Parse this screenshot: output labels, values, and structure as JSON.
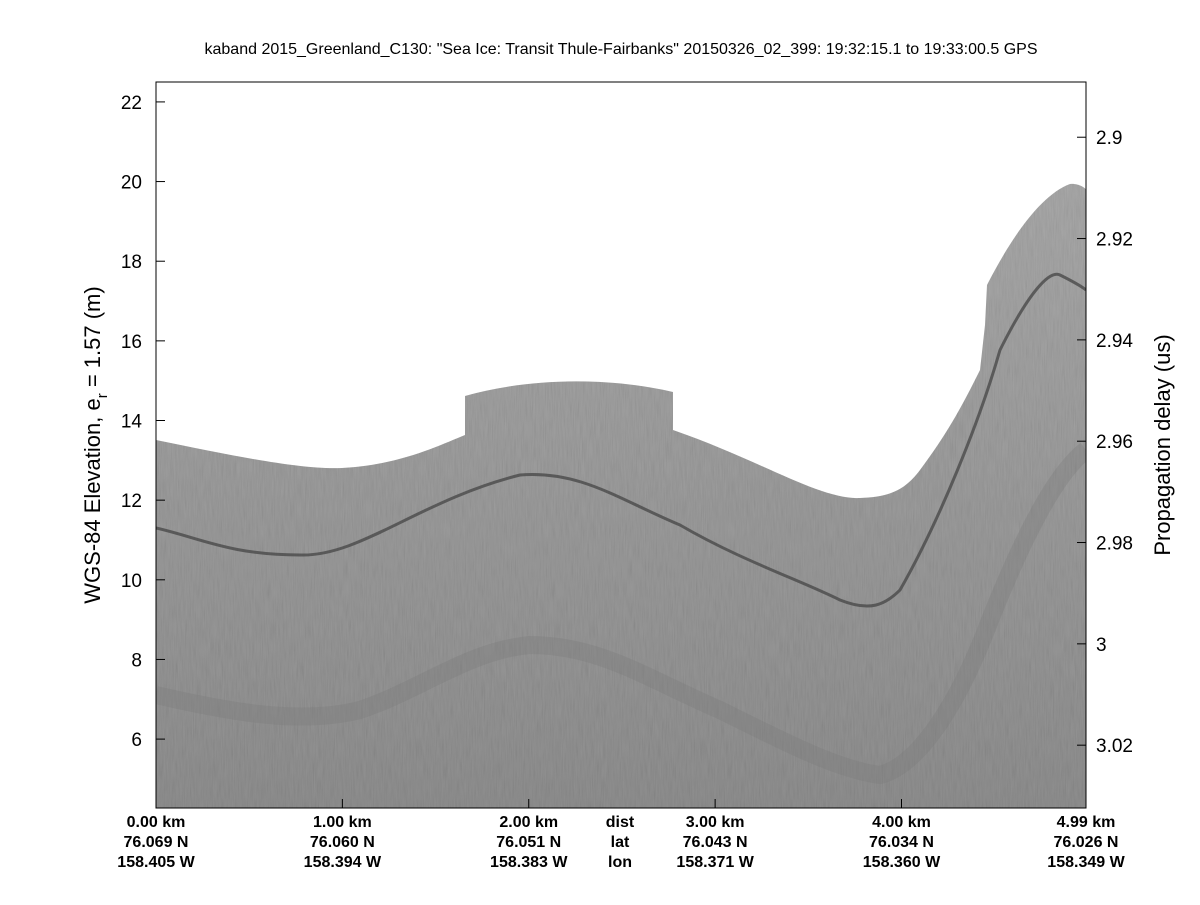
{
  "chart_data": {
    "type": "echogram",
    "title": "kaband 2015_Greenland_C130: \"Sea Ice: Transit Thule-Fairbanks\"  20150326_02_399: 19:32:15.1 to 19:33:00.5 GPS",
    "ylabel": {
      "text": "WGS-84 Elevation, e",
      "subscript": "r",
      "suffix": " = 1.57 (m)"
    },
    "y2label": "Propagation delay (us)",
    "ylim": [
      4.27,
      22.5
    ],
    "yticks": [
      6,
      8,
      10,
      12,
      14,
      16,
      18,
      20,
      22
    ],
    "y2lim": [
      2.8891,
      3.0324
    ],
    "y2_reversed": true,
    "y2ticks": [
      2.9,
      2.92,
      2.94,
      2.96,
      2.98,
      3,
      3.02
    ],
    "xlim": [
      0,
      4.99
    ],
    "xticks": [
      {
        "value": 0,
        "label": "0.00 km",
        "lat": "76.069 N",
        "lon": "158.405 W"
      },
      {
        "value": 1,
        "label": "1.00 km",
        "lat": "76.060 N",
        "lon": "158.394 W"
      },
      {
        "value": 2,
        "label": "2.00 km",
        "lat": "76.051 N",
        "lon": "158.383 W"
      },
      {
        "value": 3,
        "label": "3.00 km",
        "lat": "76.043 N",
        "lon": "158.371 W"
      },
      {
        "value": 4,
        "label": "4.00 km",
        "lat": "76.034 N",
        "lon": "158.360 W"
      },
      {
        "value": 4.99,
        "label": "4.99 km",
        "lat": "76.026 N",
        "lon": "158.349 W"
      }
    ],
    "x_row_labels": [
      "dist",
      "lat",
      "lon"
    ]
  }
}
